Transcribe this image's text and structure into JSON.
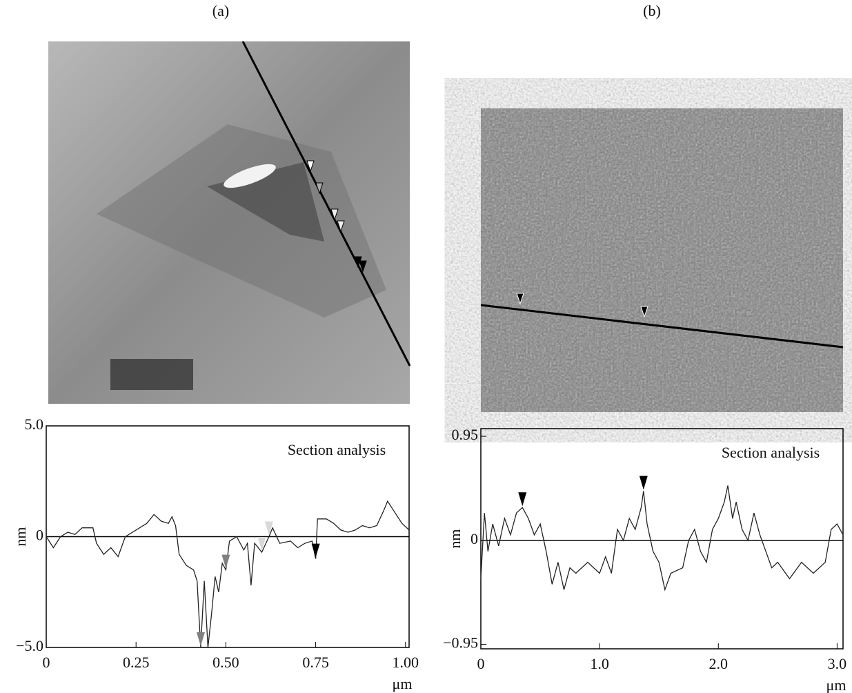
{
  "chart_data": [
    {
      "type": "line",
      "title": "(a)",
      "annotation": "Section analysis",
      "ylabel": "nm",
      "xunit": "μm",
      "color": "#222222",
      "x": [
        0,
        0.02,
        0.04,
        0.06,
        0.08,
        0.1,
        0.13,
        0.14,
        0.16,
        0.18,
        0.2,
        0.22,
        0.25,
        0.28,
        0.3,
        0.32,
        0.34,
        0.35,
        0.36,
        0.37,
        0.39,
        0.41,
        0.42,
        0.43,
        0.44,
        0.45,
        0.46,
        0.47,
        0.48,
        0.49,
        0.5,
        0.51,
        0.53,
        0.55,
        0.56,
        0.57,
        0.58,
        0.6,
        0.62,
        0.63,
        0.65,
        0.68,
        0.7,
        0.72,
        0.74,
        0.75,
        0.755,
        0.78,
        0.8,
        0.82,
        0.84,
        0.86,
        0.88,
        0.9,
        0.92,
        0.94,
        0.95,
        0.97,
        0.99,
        1.01
      ],
      "values": [
        0,
        -0.5,
        0,
        0.2,
        0.1,
        0.4,
        0.4,
        -0.3,
        -0.8,
        -0.5,
        -0.9,
        0,
        0.3,
        0.6,
        1.0,
        0.7,
        0.6,
        0.9,
        0.5,
        -0.8,
        -1.3,
        -1.5,
        -2.0,
        -5.0,
        -2.0,
        -5.0,
        -3.5,
        -1.8,
        -2.5,
        -1.2,
        -1.5,
        -0.2,
        0,
        -0.6,
        -0.3,
        -2.2,
        -0.3,
        -0.7,
        0,
        0.4,
        -0.3,
        -0.2,
        -0.5,
        -0.3,
        -0.2,
        -1.0,
        0.8,
        0.8,
        0.6,
        0.3,
        0.2,
        0.3,
        0.5,
        0.4,
        0.5,
        1.2,
        1.6,
        1.1,
        0.6,
        0.3
      ],
      "cursors": [
        {
          "x": 0.43,
          "color": "#808080"
        },
        {
          "x": 0.5,
          "color": "#808080"
        },
        {
          "x": 0.6,
          "color": "#d8d8d8"
        },
        {
          "x": 0.62,
          "color": "#d8d8d8"
        },
        {
          "x": 0.75,
          "color": "#000000"
        }
      ],
      "xlim": [
        0,
        1.01
      ],
      "ylim": [
        -5,
        5
      ],
      "xticks": [
        0,
        {
          "value": 0.25,
          "label": "0.25"
        },
        {
          "value": 0.5,
          "label": "0.50"
        },
        {
          "value": 0.75,
          "label": "0.75"
        },
        {
          "value": 1,
          "label": "1.00"
        }
      ],
      "yticks": [
        {
          "value": -5,
          "label": "−5.0"
        },
        0,
        {
          "value": 5,
          "label": "5.0"
        }
      ]
    },
    {
      "type": "line",
      "title": "(b)",
      "annotation": "Section analysis",
      "ylabel": "nm",
      "xunit": "μm",
      "color": "#222222",
      "x": [
        0,
        0.03,
        0.06,
        0.1,
        0.15,
        0.2,
        0.25,
        0.3,
        0.35,
        0.4,
        0.45,
        0.5,
        0.55,
        0.6,
        0.65,
        0.7,
        0.75,
        0.8,
        0.9,
        1.0,
        1.05,
        1.1,
        1.15,
        1.2,
        1.25,
        1.3,
        1.35,
        1.37,
        1.4,
        1.45,
        1.5,
        1.55,
        1.6,
        1.7,
        1.75,
        1.8,
        1.85,
        1.9,
        1.95,
        2.0,
        2.05,
        2.08,
        2.12,
        2.15,
        2.2,
        2.25,
        2.3,
        2.35,
        2.4,
        2.45,
        2.5,
        2.6,
        2.7,
        2.8,
        2.9,
        2.95,
        3.0,
        3.05
      ],
      "values": [
        -0.35,
        0.25,
        -0.1,
        0.15,
        -0.05,
        0.2,
        0.05,
        0.25,
        0.3,
        0.2,
        0.05,
        0.15,
        -0.1,
        -0.4,
        -0.2,
        -0.45,
        -0.25,
        -0.3,
        -0.2,
        -0.3,
        -0.15,
        -0.3,
        0.1,
        0,
        0.2,
        0.1,
        0.3,
        0.45,
        0.15,
        -0.1,
        -0.2,
        -0.45,
        -0.3,
        -0.25,
        0,
        0.1,
        -0.1,
        -0.2,
        0.1,
        0.2,
        0.35,
        0.5,
        0.2,
        0.35,
        0.1,
        0,
        0.25,
        0.05,
        -0.1,
        -0.25,
        -0.2,
        -0.35,
        -0.2,
        -0.3,
        -0.2,
        0.1,
        0.15,
        0.05
      ],
      "cursors": [
        {
          "x": 0.35,
          "color": "#000000"
        },
        {
          "x": 1.37,
          "color": "#000000"
        }
      ],
      "xlim": [
        0,
        3.05
      ],
      "ylim": [
        -0.99,
        1.02
      ],
      "xticks": [
        0,
        {
          "value": 1,
          "label": "1.0"
        },
        {
          "value": 2,
          "label": "2.0"
        },
        {
          "value": 3,
          "label": "3.0"
        }
      ],
      "yticks": [
        {
          "value": -0.95,
          "label": "−0.95"
        },
        0,
        0.95
      ]
    }
  ]
}
